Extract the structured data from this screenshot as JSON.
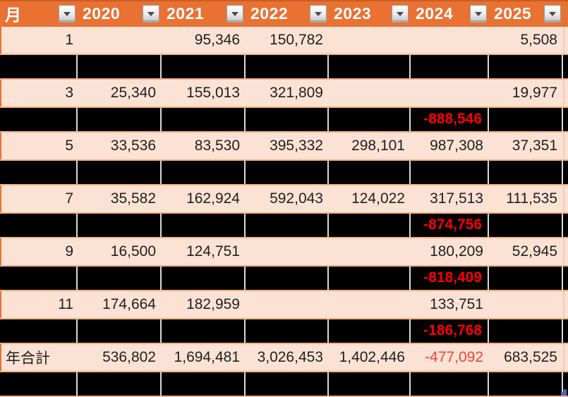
{
  "colors": {
    "header_bg": "#E97132",
    "header_text": "#FFFFFF",
    "light_row_bg": "#FBE2D5",
    "hidden_row_bg": "#000000",
    "row_divider": "#F4B183",
    "hidden_gridline": "#D9D9D9",
    "cell_text": "#1F1F1F",
    "negative_text": "#FF0000",
    "total_negative_text": "#EF4438",
    "fill_handle": "#4B66BE"
  },
  "table": {
    "header": {
      "columns": [
        "月",
        "2020",
        "2021",
        "2022",
        "2023",
        "2024",
        "2025"
      ],
      "filter_icon": "filter-dropdown-caret"
    },
    "rows": [
      {
        "type": "data",
        "label": "1",
        "values": [
          "",
          "95,346",
          "150,782",
          "",
          "",
          "5,508"
        ]
      },
      {
        "type": "hidden",
        "label": "",
        "values": [
          "",
          "",
          "",
          "",
          "",
          ""
        ]
      },
      {
        "type": "data",
        "label": "3",
        "values": [
          "25,340",
          "155,013",
          "321,809",
          "",
          "",
          "19,977"
        ]
      },
      {
        "type": "hidden",
        "label": "",
        "values": [
          "",
          "",
          "",
          "",
          "-888,546",
          ""
        ]
      },
      {
        "type": "data",
        "label": "5",
        "values": [
          "33,536",
          "83,530",
          "395,332",
          "298,101",
          "987,308",
          "37,351"
        ]
      },
      {
        "type": "hidden",
        "label": "",
        "values": [
          "",
          "",
          "",
          "",
          "",
          ""
        ]
      },
      {
        "type": "data",
        "label": "7",
        "values": [
          "35,582",
          "162,924",
          "592,043",
          "124,022",
          "317,513",
          "111,535"
        ]
      },
      {
        "type": "hidden",
        "label": "",
        "values": [
          "",
          "",
          "",
          "",
          "-874,756",
          ""
        ]
      },
      {
        "type": "data",
        "label": "9",
        "values": [
          "16,500",
          "124,751",
          "",
          "",
          "180,209",
          "52,945"
        ]
      },
      {
        "type": "hidden",
        "label": "",
        "values": [
          "",
          "",
          "",
          "",
          "-818,409",
          ""
        ]
      },
      {
        "type": "data",
        "label": "11",
        "values": [
          "174,664",
          "182,959",
          "",
          "",
          "133,751",
          ""
        ]
      },
      {
        "type": "hidden",
        "label": "",
        "values": [
          "",
          "",
          "",
          "",
          "-186,768",
          ""
        ]
      },
      {
        "type": "total",
        "label": "年合計",
        "values": [
          "536,802",
          "1,694,481",
          "3,026,453",
          "1,402,446",
          "-477,092",
          "683,525"
        ]
      },
      {
        "type": "hidden",
        "label": "",
        "values": [
          "",
          "",
          "",
          "",
          "",
          ""
        ]
      }
    ]
  }
}
